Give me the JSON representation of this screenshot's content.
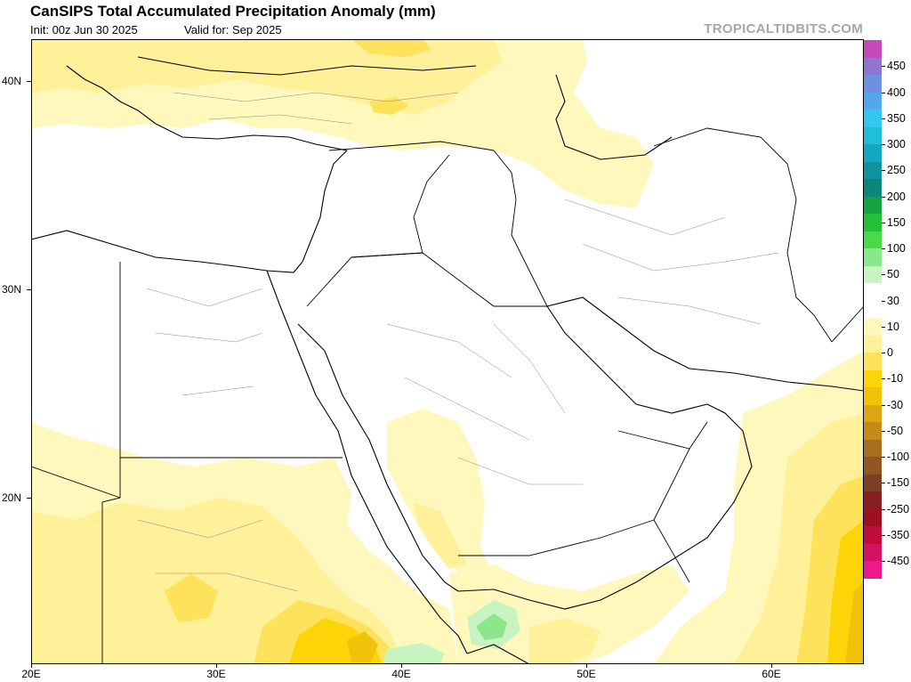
{
  "header": {
    "title": "CanSIPS Total Accumulated Precipitation Anomaly (mm)",
    "init": "Init: 00z Jun 30 2025",
    "valid": "Valid for: Sep 2025",
    "brand": "TROPICALTIDBITS.COM"
  },
  "axes": {
    "lat_labels": [
      "40N",
      "30N",
      "20N"
    ],
    "lon_labels": [
      "20E",
      "30E",
      "40E",
      "50E",
      "60E"
    ]
  },
  "colorbar": {
    "labels": [
      "450",
      "400",
      "350",
      "300",
      "250",
      "200",
      "150",
      "100",
      "50",
      "30",
      "10",
      "0",
      "-10",
      "-30",
      "-50",
      "-100",
      "-150",
      "-250",
      "-350",
      "-450"
    ],
    "colors": [
      "#c64ab9",
      "#9173d1",
      "#6f8fe0",
      "#54a7ea",
      "#33c6f0",
      "#1fc0d7",
      "#14a8bf",
      "#0f949f",
      "#0c857d",
      "#14a33e",
      "#22c23b",
      "#4ad84d",
      "#8ce68b",
      "#c8f4c2",
      "#ffffff",
      "#ffffff",
      "#fff8bd",
      "#fff09a",
      "#fee25c",
      "#fcd407",
      "#f0c30a",
      "#dba513",
      "#c48a1a",
      "#a86e1f",
      "#925624",
      "#7a3f24",
      "#84201f",
      "#a00f20",
      "#c00b3b",
      "#d41260",
      "#ef1a8a"
    ]
  },
  "map": {
    "region": "Middle East / Arabian Peninsula / NE Africa",
    "lon_range": [
      20,
      65
    ],
    "lat_range": [
      12.5,
      42.5
    ],
    "anomaly_colors": {
      "dry_light": "#fff8bd",
      "dry_medium": "#fff09a",
      "dry_strong": "#fee25c",
      "dry_heavy": "#fcd407",
      "dry_extreme": "#f0c30a",
      "wet_light": "#c8f4c2",
      "wet_medium": "#8ce68b"
    }
  }
}
